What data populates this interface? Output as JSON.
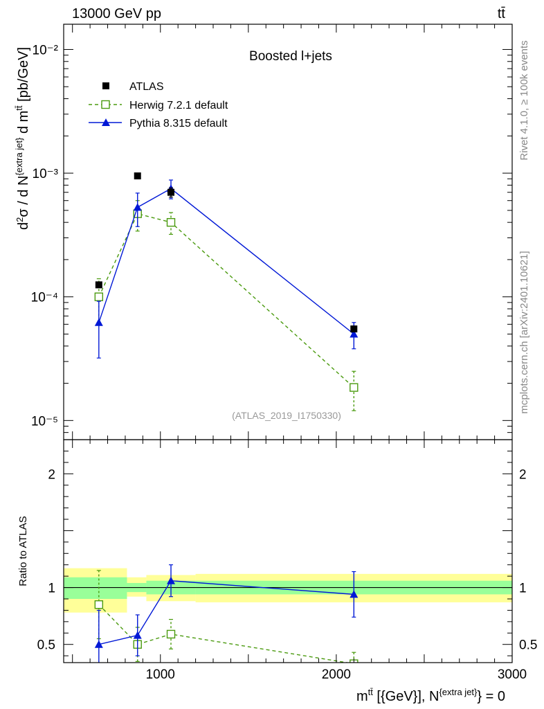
{
  "header": {
    "left": "13000 GeV pp",
    "right": "tt̄"
  },
  "side_labels": {
    "rivet": "Rivet 4.1.0, ≥ 100k events",
    "mcplots": "mcplots.cern.ch [arXiv:2401.10621]"
  },
  "colors": {
    "data": "#000000",
    "herwig": "#4a9a0e",
    "pythia": "#0018d6",
    "band_outer": "#ffff99",
    "band_inner": "#99ff99",
    "ref_line": "#000000"
  },
  "chart_data": [
    {
      "type": "line",
      "title": "Boosted l+jets",
      "analysis_tag": "(ATLAS_2019_I1750330)",
      "ylabel": "d²σ / d N^{extra jet} d m^{tt̄} [pb/GeV]",
      "yscale": "log",
      "xlim": [
        450,
        3000
      ],
      "ylim": [
        7e-06,
        0.016
      ],
      "ytick_labels": [
        "10⁻⁵",
        "10⁻⁴",
        "10⁻³",
        "10⁻²"
      ],
      "yticks": [
        1e-05,
        0.0001,
        0.001,
        0.01
      ],
      "legend": [
        "ATLAS",
        "Herwig 7.2.1 default",
        "Pythia 8.315 default"
      ],
      "legend_position": "top-left",
      "series": [
        {
          "name": "ATLAS",
          "style": "markers",
          "x": [
            650,
            870,
            1060,
            2100
          ],
          "y": [
            0.000125,
            0.00095,
            0.0007,
            5.5e-05
          ],
          "yerr": [
            6e-06,
            3e-05,
            6e-05,
            3e-06
          ]
        },
        {
          "name": "Herwig 7.2.1 default",
          "style": "dashed",
          "x": [
            650,
            870,
            1060,
            2100
          ],
          "y": [
            0.0001,
            0.00047,
            0.0004,
            1.85e-05
          ],
          "yerr": [
            4e-05,
            0.00013,
            8e-05,
            6.5e-06
          ]
        },
        {
          "name": "Pythia 8.315 default",
          "style": "solid",
          "x": [
            650,
            870,
            1060,
            2100
          ],
          "y": [
            6.2e-05,
            0.00053,
            0.00075,
            5e-05
          ],
          "yerr": [
            3e-05,
            0.00016,
            0.00013,
            1.2e-05
          ]
        }
      ]
    },
    {
      "type": "line",
      "ylabel": "Ratio to ATLAS",
      "xlabel": "m^{tt̄} [{GeV}], N^{extra jet} = 0",
      "xlim": [
        450,
        3000
      ],
      "ylim": [
        0.34,
        2.3
      ],
      "xticks": [
        1000,
        2000,
        3000
      ],
      "xtick_labels": [
        "1000",
        "2000",
        "3000"
      ],
      "yticks": [
        0.5,
        1,
        2
      ],
      "ytick_labels": [
        "0.5",
        "1",
        "2"
      ],
      "bands": [
        {
          "x0": 450,
          "x1": 810,
          "outer": [
            0.78,
            1.17
          ],
          "inner": [
            0.9,
            1.09
          ]
        },
        {
          "x0": 810,
          "x1": 920,
          "outer": [
            0.92,
            1.09
          ],
          "inner": [
            0.96,
            1.04
          ]
        },
        {
          "x0": 920,
          "x1": 1200,
          "outer": [
            0.88,
            1.11
          ],
          "inner": [
            0.94,
            1.06
          ]
        },
        {
          "x0": 1200,
          "x1": 3000,
          "outer": [
            0.87,
            1.12
          ],
          "inner": [
            0.94,
            1.06
          ]
        }
      ],
      "series": [
        {
          "name": "Herwig 7.2.1 default",
          "style": "dashed",
          "x": [
            650,
            870,
            1060,
            2100
          ],
          "y": [
            0.85,
            0.5,
            0.59,
            0.33
          ],
          "yerr": [
            0.3,
            0.15,
            0.13,
            0.1
          ]
        },
        {
          "name": "Pythia 8.315 default",
          "style": "solid",
          "x": [
            650,
            870,
            1060,
            2100
          ],
          "y": [
            0.5,
            0.58,
            1.06,
            0.94
          ],
          "yerr": [
            0.3,
            0.18,
            0.14,
            0.2
          ]
        }
      ]
    }
  ]
}
